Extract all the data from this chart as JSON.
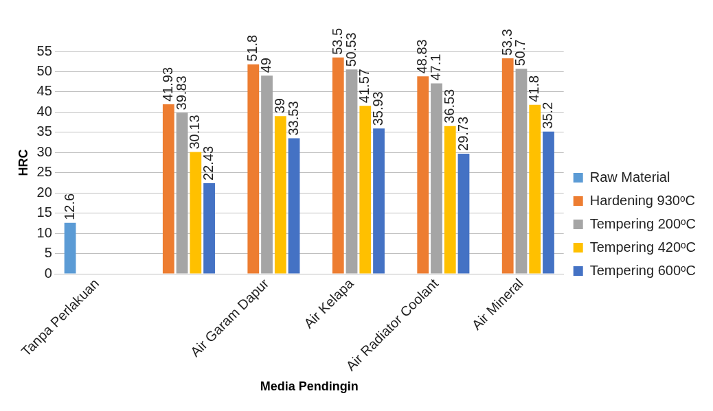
{
  "chart_data": {
    "type": "bar",
    "xlabel": "Media Pendingin",
    "ylabel": "HRC",
    "categories": [
      "Tanpa Perlakuan",
      null,
      "Air Garam Dapur",
      "Air Kelapa",
      "Air Radiator Coolant",
      "Air Mineral"
    ],
    "series": [
      {
        "name": "Raw Material",
        "color": "#5b9bd5",
        "values": [
          12.6,
          null,
          null,
          null,
          null,
          null
        ]
      },
      {
        "name": "Hardening 930ᵒC",
        "color": "#ed7d31",
        "values": [
          null,
          41.93,
          51.8,
          53.5,
          48.83,
          53.3
        ]
      },
      {
        "name": "Tempering 200ᵒC",
        "color": "#a5a5a5",
        "values": [
          null,
          39.83,
          49,
          50.53,
          47.1,
          50.7
        ]
      },
      {
        "name": "Tempering 420ᵒC",
        "color": "#ffc000",
        "values": [
          null,
          30.13,
          39,
          41.57,
          36.53,
          41.8
        ]
      },
      {
        "name": "Tempering 600ᵒC",
        "color": "#4472c4",
        "values": [
          null,
          22.43,
          33.53,
          35.93,
          29.73,
          35.2
        ]
      }
    ],
    "ylim": [
      0,
      55
    ],
    "yticks": [
      0,
      5,
      10,
      15,
      20,
      25,
      30,
      35,
      40,
      45,
      50,
      55
    ],
    "grid": "y",
    "legend": "right",
    "data_labels": true
  }
}
